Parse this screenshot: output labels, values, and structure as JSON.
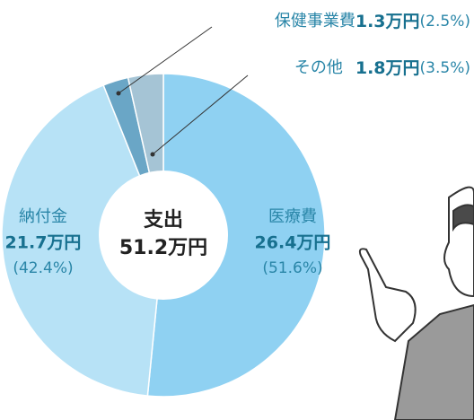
{
  "chart_data": {
    "type": "pie",
    "center_title": "支出",
    "total": 51.2,
    "total_label": "51.2万円",
    "categories": [
      "医療費",
      "納付金",
      "保健事業費",
      "その他"
    ],
    "values": [
      26.4,
      21.7,
      1.3,
      1.8
    ],
    "value_labels": [
      "26.4万円",
      "21.7万円",
      "1.3万円",
      "1.8万円"
    ],
    "percents": [
      51.6,
      42.4,
      2.5,
      3.5
    ],
    "percent_labels": [
      "(51.6%)",
      "(42.4%)",
      "(2.5%)",
      "(3.5%)"
    ],
    "colors": [
      "#8fd1f2",
      "#b7e2f6",
      "#6aa6c6",
      "#a5c4d5"
    ]
  }
}
